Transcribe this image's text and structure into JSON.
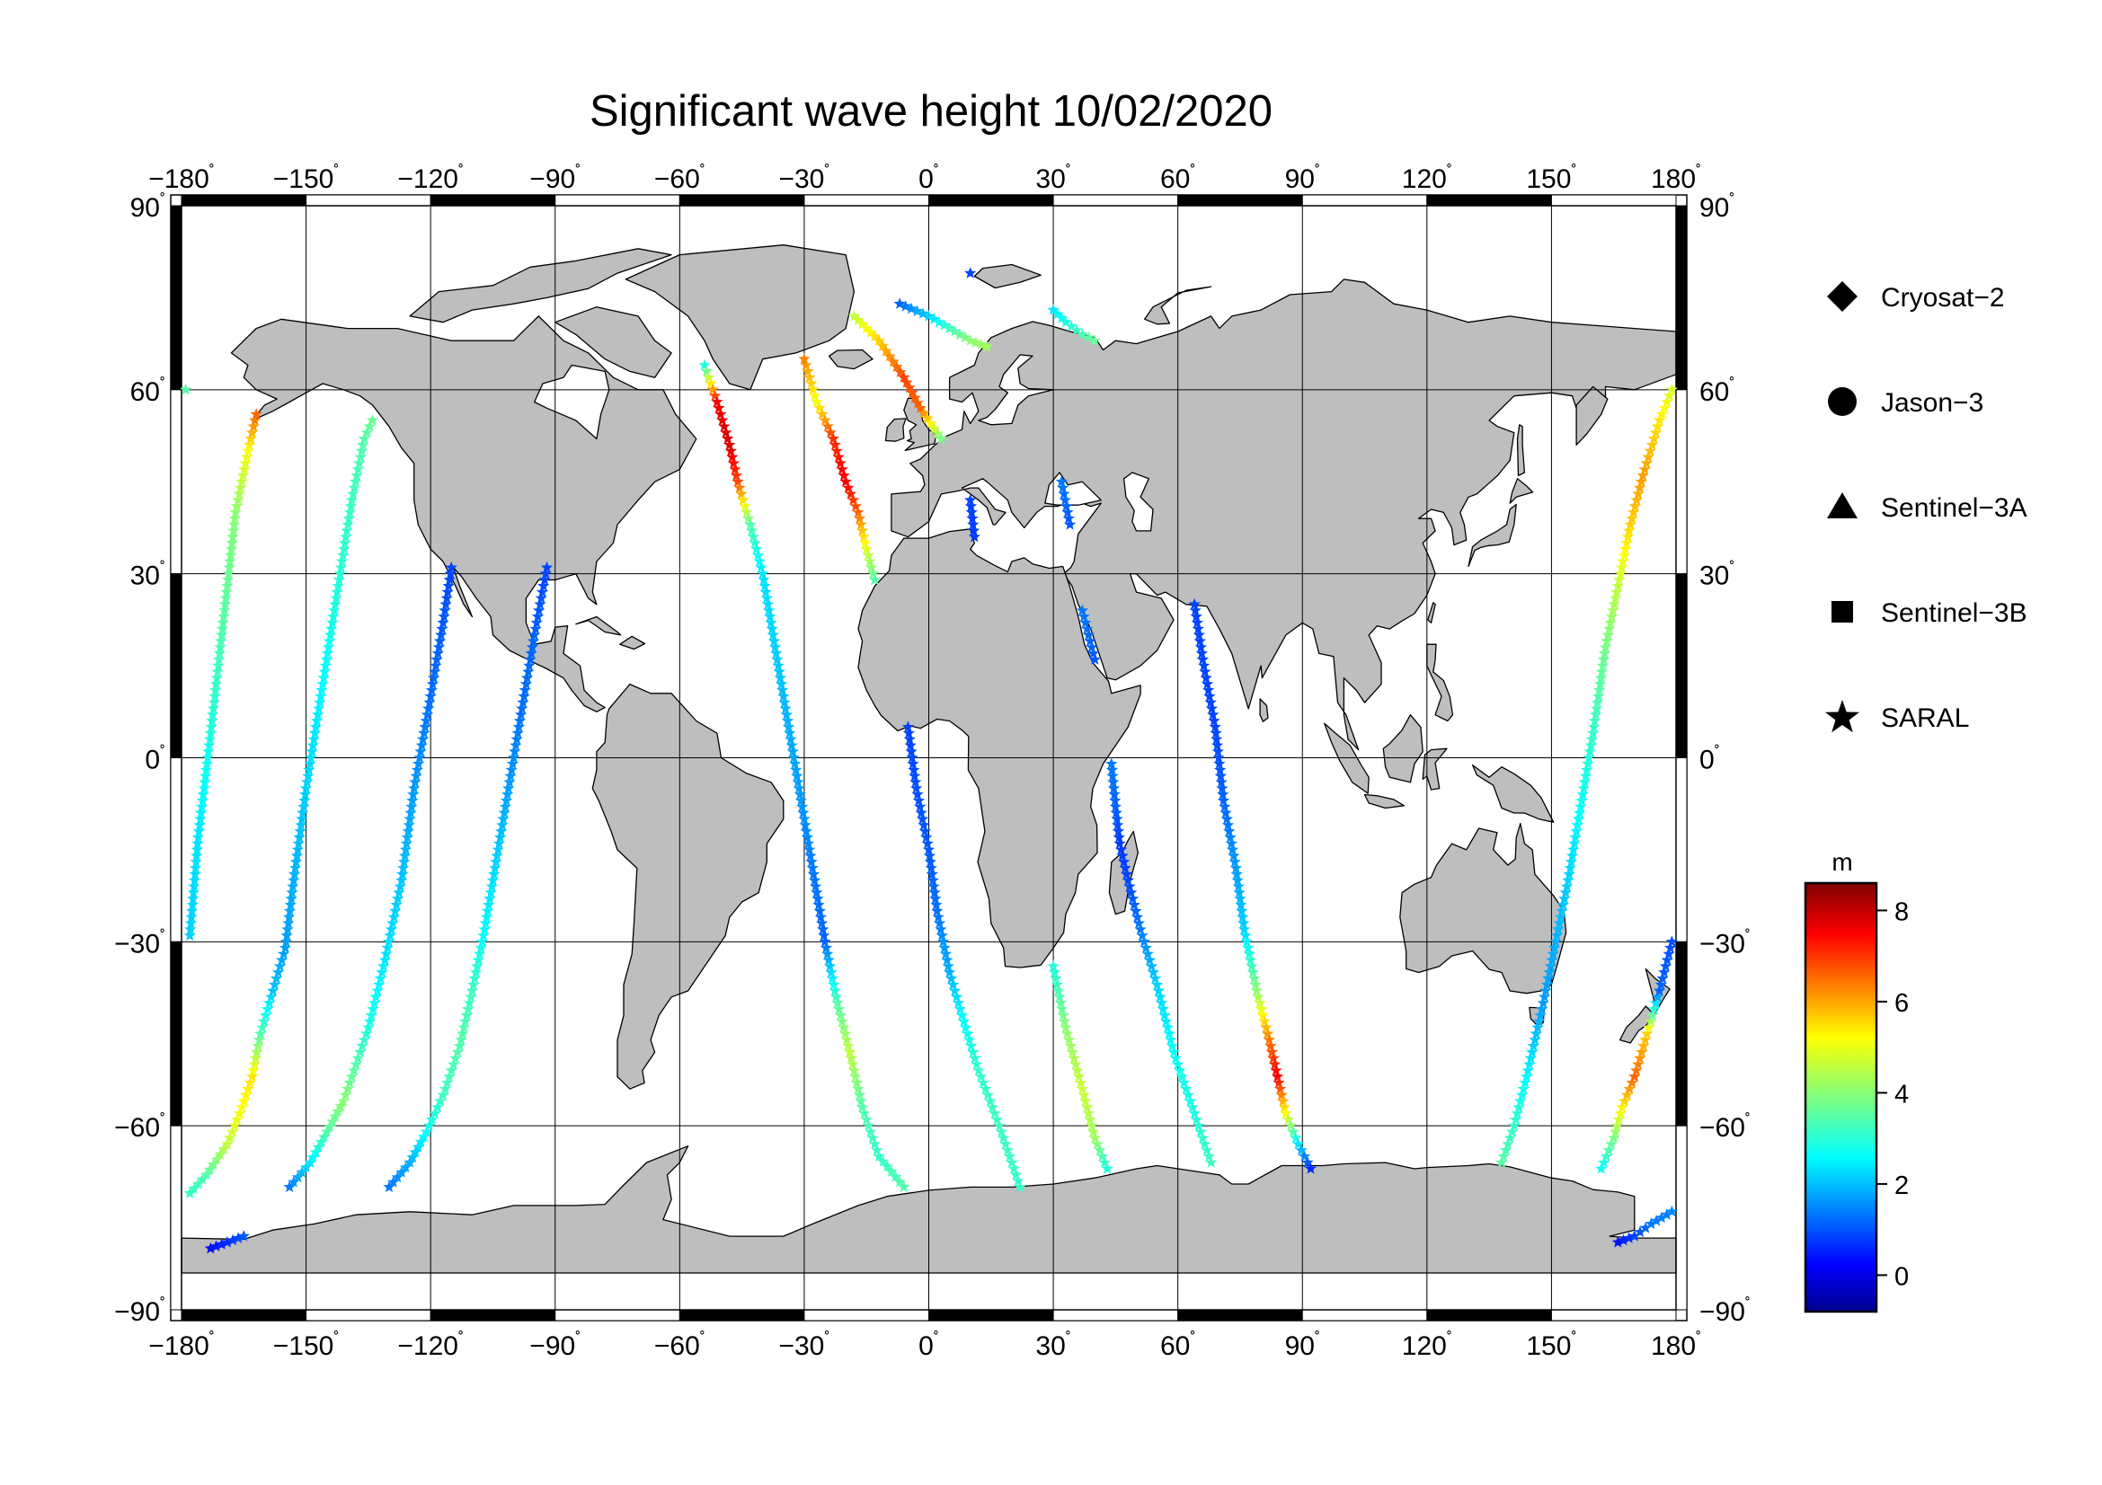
{
  "title": "Significant wave height 10/02/2020",
  "axes": {
    "lon_ticks": [
      -180,
      -150,
      -120,
      -90,
      -60,
      -30,
      0,
      30,
      60,
      90,
      120,
      150,
      180
    ],
    "lat_ticks": [
      90,
      60,
      30,
      0,
      -30,
      -60,
      -90
    ],
    "lon_range": [
      -180,
      180
    ],
    "lat_range": [
      -90,
      90
    ],
    "lon_labels": [
      "−180˚",
      "−150˚",
      "−120˚",
      "−90˚",
      "−60˚",
      "−30˚",
      "0˚",
      "30˚",
      "60˚",
      "90˚",
      "120˚",
      "150˚",
      "180˚"
    ],
    "lat_labels": [
      "90˚",
      "60˚",
      "30˚",
      "0˚",
      "−30˚",
      "−60˚",
      "−90˚"
    ],
    "grid": true,
    "land_color": "#bebebe",
    "ocean_color": "#ffffff"
  },
  "legend": {
    "placement": "right",
    "items": [
      {
        "label": "Cryosat−2",
        "symbol": "diamond"
      },
      {
        "label": "Jason−3",
        "symbol": "circle"
      },
      {
        "label": "Sentinel−3A",
        "symbol": "triangle"
      },
      {
        "label": "Sentinel−3B",
        "symbol": "square"
      },
      {
        "label": "SARAL",
        "symbol": "star"
      }
    ]
  },
  "colorbar": {
    "unit": "m",
    "range": [
      -0.8,
      8.6
    ],
    "ticks": [
      8,
      6,
      4,
      2,
      0
    ],
    "tick_labels": [
      "8",
      "6",
      "4",
      "2",
      "0"
    ],
    "colormap": "jet"
  },
  "chart_data": {
    "type": "scatter",
    "title": "Significant wave height 10/02/2020",
    "xlabel": "",
    "ylabel": "",
    "xlim": [
      -180,
      180
    ],
    "ylim": [
      -90,
      90
    ],
    "value_unit": "m",
    "series": [
      {
        "name": "SARAL",
        "tracks": [
          {
            "points": [
              [
                -179,
                60,
                3.5
              ]
            ]
          },
          {
            "points": [
              [
                -178,
                -29,
                2.3
              ],
              [
                -176,
                -13,
                2.5
              ],
              [
                -173,
                4,
                3.0
              ],
              [
                -170,
                22,
                3.5
              ],
              [
                -167,
                40,
                4.0
              ],
              [
                -164,
                50,
                5.0
              ],
              [
                -162,
                56,
                6.5
              ]
            ]
          },
          {
            "points": [
              [
                -178,
                -71,
                3.2
              ],
              [
                -174,
                -68,
                3.5
              ],
              [
                -169,
                -63,
                4.5
              ],
              [
                -166,
                -58,
                5.0
              ],
              [
                -163,
                -52,
                5.3
              ],
              [
                -161,
                -45,
                3.5
              ],
              [
                -158,
                -38,
                2.2
              ],
              [
                -155,
                -31,
                1.8
              ],
              [
                -153,
                -20,
                2.0
              ],
              [
                -150,
                -5,
                2.3
              ],
              [
                -146,
                12,
                2.7
              ],
              [
                -143,
                25,
                3.0
              ],
              [
                -139,
                42,
                3.3
              ],
              [
                -136,
                52,
                3.5
              ],
              [
                -134,
                55,
                3.7
              ]
            ]
          },
          {
            "points": [
              [
                -173,
                -80,
                0.5
              ],
              [
                -169,
                -79,
                0.8
              ],
              [
                -165,
                -78,
                1.2
              ]
            ]
          },
          {
            "points": [
              [
                -154,
                -70,
                1.5
              ],
              [
                -149,
                -66,
                2.5
              ],
              [
                -145,
                -61,
                3.5
              ],
              [
                -141,
                -56,
                4.0
              ],
              [
                -138,
                -50,
                3.5
              ],
              [
                -135,
                -44,
                3.0
              ],
              [
                -131,
                -33,
                2.5
              ],
              [
                -127,
                -20,
                2.2
              ],
              [
                -124,
                -5,
                1.8
              ],
              [
                -120,
                10,
                1.4
              ],
              [
                -117,
                22,
                1.2
              ],
              [
                -115,
                31,
                1.0
              ]
            ]
          },
          {
            "points": [
              [
                -130,
                -70,
                1.5
              ],
              [
                -125,
                -66,
                2.0
              ],
              [
                -121,
                -61,
                2.8
              ],
              [
                -117,
                -55,
                3.3
              ],
              [
                -113,
                -47,
                3.5
              ],
              [
                -110,
                -38,
                3.3
              ],
              [
                -107,
                -28,
                2.7
              ],
              [
                -104,
                -16,
                2.3
              ],
              [
                -101,
                -4,
                1.8
              ],
              [
                -98,
                8,
                1.4
              ],
              [
                -95,
                20,
                1.3
              ],
              [
                -92,
                31,
                1.0
              ]
            ]
          },
          {
            "points": [
              [
                -54,
                64,
                3.0
              ],
              [
                -51,
                58,
                7.5
              ],
              [
                -48,
                51,
                7.8
              ],
              [
                -46,
                45,
                6.8
              ],
              [
                -43,
                38,
                3.5
              ],
              [
                -40,
                30,
                2.5
              ],
              [
                -37,
                18,
                2.3
              ],
              [
                -34,
                6,
                2.0
              ],
              [
                -31,
                -6,
                1.8
              ],
              [
                -28,
                -18,
                1.5
              ],
              [
                -25,
                -30,
                1.3
              ],
              [
                -22,
                -40,
                3.5
              ],
              [
                -19,
                -48,
                4.5
              ],
              [
                -16,
                -57,
                3.5
              ],
              [
                -12,
                -65,
                3.2
              ],
              [
                -6,
                -70,
                3.5
              ]
            ]
          },
          {
            "points": [
              [
                -30,
                65,
                6.2
              ],
              [
                -27,
                58,
                5.0
              ],
              [
                -23,
                52,
                7.0
              ],
              [
                -20,
                45,
                7.5
              ],
              [
                -17,
                40,
                6.5
              ],
              [
                -15,
                34,
                4.8
              ],
              [
                -13,
                29,
                3.5
              ]
            ]
          },
          {
            "points": [
              [
                -18,
                72,
                4.5
              ],
              [
                -12,
                68,
                5.5
              ],
              [
                -6,
                62,
                6.8
              ],
              [
                -2,
                57,
                6.5
              ],
              [
                3,
                52,
                3.8
              ]
            ]
          },
          {
            "points": [
              [
                -7,
                74,
                1.3
              ],
              [
                0,
                72,
                2.3
              ],
              [
                5,
                70,
                3.3
              ],
              [
                10,
                68,
                4.0
              ],
              [
                14,
                67,
                4.2
              ]
            ]
          },
          {
            "points": [
              [
                10,
                79,
                1.0
              ]
            ]
          },
          {
            "points": [
              [
                30,
                73,
                2.5
              ],
              [
                33,
                71,
                3.0
              ],
              [
                37,
                69,
                3.4
              ],
              [
                40,
                68,
                3.7
              ]
            ]
          },
          {
            "points": [
              [
                -5,
                5,
                1.0
              ],
              [
                -3,
                -5,
                1.1
              ],
              [
                0,
                -15,
                1.2
              ],
              [
                2,
                -25,
                1.4
              ],
              [
                5,
                -35,
                2.0
              ],
              [
                8,
                -42,
                2.7
              ],
              [
                12,
                -51,
                3.2
              ],
              [
                17,
                -60,
                3.3
              ],
              [
                22,
                -70,
                3.2
              ]
            ]
          },
          {
            "points": [
              [
                10,
                42,
                1.0
              ],
              [
                11,
                36,
                0.9
              ]
            ]
          },
          {
            "points": [
              [
                32,
                45,
                1.5
              ],
              [
                34,
                38,
                1.2
              ]
            ]
          },
          {
            "points": [
              [
                37,
                24,
                1.5
              ],
              [
                40,
                16,
                1.2
              ]
            ]
          },
          {
            "points": [
              [
                44,
                -1,
                1.5
              ],
              [
                45,
                -8,
                1.3
              ],
              [
                46,
                -14,
                0.9
              ],
              [
                48,
                -20,
                1.0
              ],
              [
                51,
                -28,
                1.5
              ],
              [
                55,
                -37,
                2.3
              ],
              [
                59,
                -48,
                2.8
              ],
              [
                64,
                -58,
                3.0
              ],
              [
                68,
                -66,
                3.3
              ]
            ]
          },
          {
            "points": [
              [
                30,
                -34,
                3.0
              ],
              [
                33,
                -44,
                4.0
              ],
              [
                37,
                -54,
                4.6
              ],
              [
                40,
                -62,
                4.2
              ],
              [
                43,
                -67,
                3.0
              ]
            ]
          },
          {
            "points": [
              [
                64,
                25,
                1.0
              ],
              [
                66,
                16,
                1.0
              ],
              [
                69,
                5,
                1.0
              ],
              [
                71,
                -7,
                1.3
              ],
              [
                74,
                -18,
                1.8
              ],
              [
                76,
                -28,
                2.3
              ],
              [
                79,
                -38,
                4.0
              ],
              [
                82,
                -46,
                6.3
              ],
              [
                84,
                -52,
                7.5
              ],
              [
                86,
                -58,
                5.0
              ],
              [
                89,
                -63,
                2.5
              ],
              [
                92,
                -67,
                0.8
              ]
            ]
          },
          {
            "points": [
              [
                138,
                -66,
                3.5
              ],
              [
                141,
                -60,
                3.2
              ],
              [
                144,
                -52,
                2.7
              ],
              [
                148,
                -40,
                1.8
              ],
              [
                151,
                -30,
                2.0
              ],
              [
                154,
                -20,
                2.3
              ],
              [
                157,
                -8,
                2.8
              ],
              [
                160,
                4,
                3.2
              ],
              [
                163,
                18,
                3.8
              ],
              [
                166,
                28,
                4.5
              ],
              [
                169,
                38,
                5.5
              ],
              [
                172,
                46,
                6.0
              ],
              [
                176,
                55,
                5.3
              ],
              [
                179,
                60,
                4.7
              ]
            ]
          },
          {
            "points": [
              [
                162,
                -67,
                2.8
              ],
              [
                165,
                -62,
                3.8
              ],
              [
                167,
                -57,
                5.2
              ],
              [
                170,
                -52,
                6.5
              ],
              [
                173,
                -45,
                5.5
              ],
              [
                176,
                -38,
                1.3
              ],
              [
                179,
                -30,
                1.1
              ]
            ]
          },
          {
            "points": [
              [
                166,
                -79,
                0.5
              ],
              [
                170,
                -78,
                1.0
              ],
              [
                174,
                -76,
                1.5
              ],
              [
                179,
                -74,
                1.6
              ]
            ]
          }
        ]
      }
    ],
    "legend_entries": [
      "Cryosat−2",
      "Jason−3",
      "Sentinel−3A",
      "Sentinel−3B",
      "SARAL"
    ],
    "colorbar_range": [
      -0.8,
      8.6
    ],
    "colorbar_ticks": [
      0,
      2,
      4,
      6,
      8
    ]
  }
}
